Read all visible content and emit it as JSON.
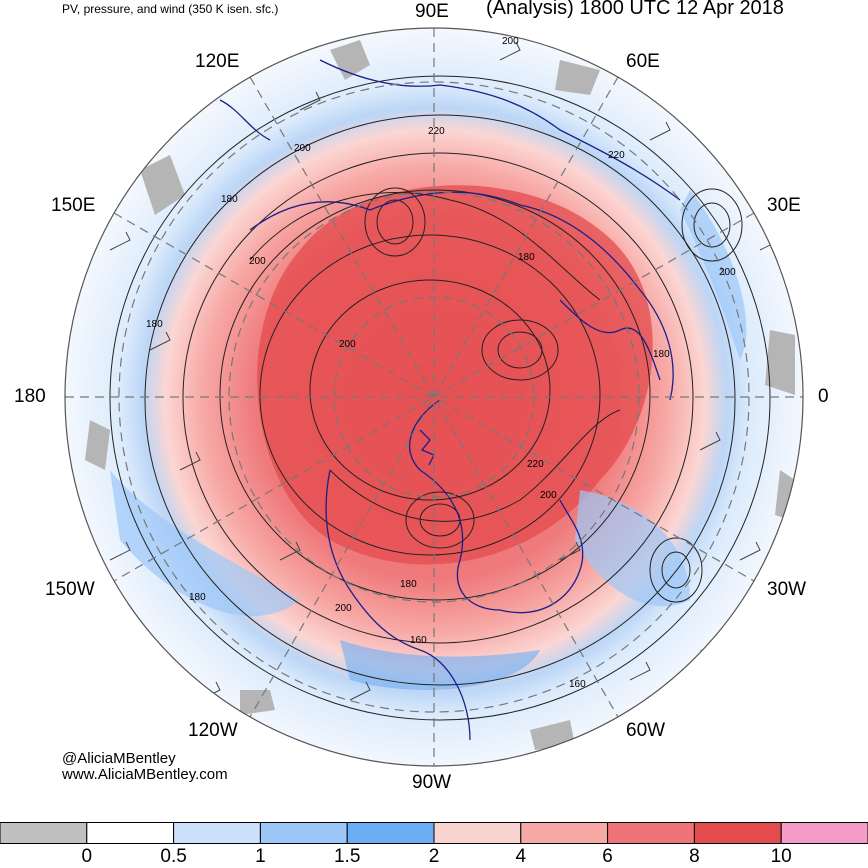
{
  "header": {
    "left_title": "PV, pressure, and wind (350 K isen. sfc.)",
    "right_title": "(Analysis) 1800 UTC 12 Apr 2018"
  },
  "longitude_labels": {
    "deg_90e": "90E",
    "deg_60e": "60E",
    "deg_120e": "120E",
    "deg_150e": "150E",
    "deg_30e": "30E",
    "deg_180": "180",
    "deg_0": "0",
    "deg_150w": "150W",
    "deg_30w": "30W",
    "deg_120w": "120W",
    "deg_60w": "60W",
    "deg_90w": "90W"
  },
  "contour_labels": [
    {
      "id": "c1",
      "text": "200"
    },
    {
      "id": "c2",
      "text": "220"
    },
    {
      "id": "c3",
      "text": "200"
    },
    {
      "id": "c4",
      "text": "220"
    },
    {
      "id": "c5",
      "text": "180"
    },
    {
      "id": "c6",
      "text": "200"
    },
    {
      "id": "c7",
      "text": "180"
    },
    {
      "id": "c8",
      "text": "200"
    },
    {
      "id": "c9",
      "text": "200"
    },
    {
      "id": "c10",
      "text": "180"
    },
    {
      "id": "c11",
      "text": "180"
    },
    {
      "id": "c12",
      "text": "220"
    },
    {
      "id": "c13",
      "text": "200"
    },
    {
      "id": "c14",
      "text": "180"
    },
    {
      "id": "c15",
      "text": "200"
    },
    {
      "id": "c16",
      "text": "180"
    },
    {
      "id": "c17",
      "text": "160"
    },
    {
      "id": "c18",
      "text": "160"
    }
  ],
  "credit": {
    "handle": "@AliciaMBentley",
    "website": "www.AliciaMBentley.com"
  },
  "colorbar": {
    "colors": [
      "#c0c0c0",
      "#ffffff",
      "#cde0fb",
      "#9dc7f8",
      "#6caef5",
      "#fad4d1",
      "#f7a9a6",
      "#f07377",
      "#e44b4d",
      "#f59bc7"
    ],
    "labels": [
      "0",
      "0.5",
      "1",
      "1.5",
      "2",
      "4",
      "6",
      "8",
      "10"
    ]
  }
}
